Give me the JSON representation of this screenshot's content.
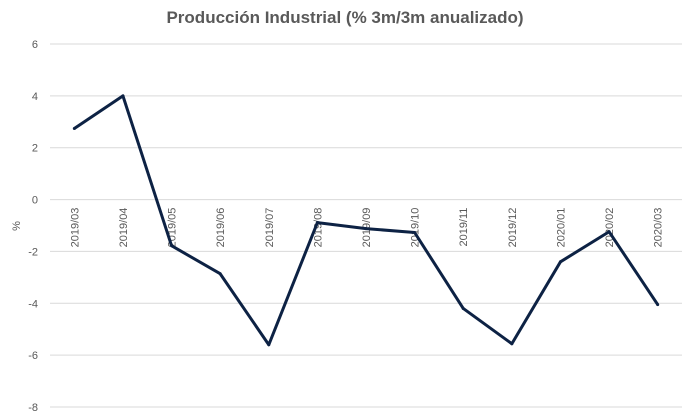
{
  "chart_data": {
    "type": "line",
    "title": "Producción Industrial (% 3m/3m anualizado)",
    "xlabel": "",
    "ylabel": "%",
    "ylim": [
      -8,
      6
    ],
    "yticks": [
      "6",
      "4",
      "2",
      "0",
      "-2",
      "-4",
      "-6",
      "-8"
    ],
    "grid": true,
    "line_color": "#0d2244",
    "categories": [
      "2019/03",
      "2019/04",
      "2019/05",
      "2019/06",
      "2019/07",
      "2019/08",
      "2019/09",
      "2019/10",
      "2019/11",
      "2019/12",
      "2020/01",
      "2020/02",
      "2020/03"
    ],
    "values": [
      2.74,
      4.0,
      -1.78,
      -2.86,
      -5.6,
      -0.89,
      -1.12,
      -1.27,
      -4.2,
      -5.56,
      -2.4,
      -1.24,
      -4.05
    ]
  }
}
